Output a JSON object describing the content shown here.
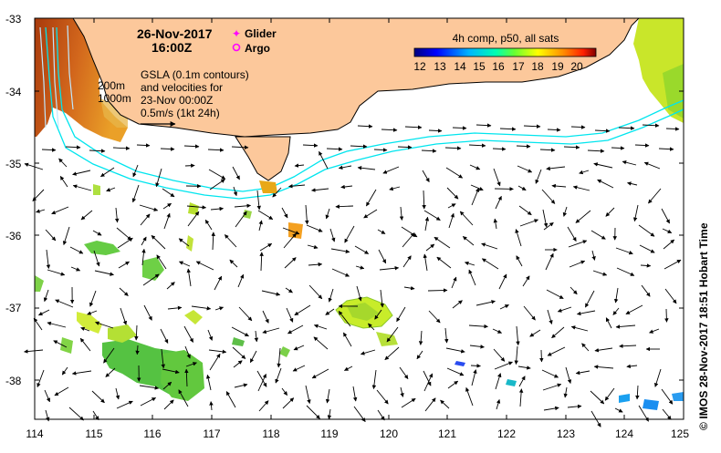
{
  "map": {
    "date": "26-Nov-2017",
    "time": "16:00Z",
    "legend_glider": "Glider",
    "legend_argo": "Argo",
    "colorbar_title": "4h comp, p50, all sats",
    "colorbar_ticks": [
      "12",
      "13",
      "14",
      "15",
      "16",
      "17",
      "18",
      "19",
      "20"
    ],
    "gsla_lines": [
      "GSLA (0.1m contours)",
      "and velocities for",
      "23-Nov 00:00Z",
      "0.5m/s (1kt 24h)"
    ],
    "isobath_labels": [
      "200m",
      "1000m"
    ],
    "credit": "© IMOS 28-Nov-2017 18:51 Hobart Time",
    "x_ticks": [
      "114",
      "115",
      "116",
      "117",
      "118",
      "119",
      "120",
      "121",
      "122",
      "123",
      "124",
      "125"
    ],
    "y_ticks": [
      "-33",
      "-34",
      "-35",
      "-36",
      "-37",
      "-38"
    ],
    "colors": {
      "land": "#fcc89b",
      "isobath": "#00e5ee",
      "glider": "#ff00ff",
      "argo": "#ff00ff"
    }
  }
}
